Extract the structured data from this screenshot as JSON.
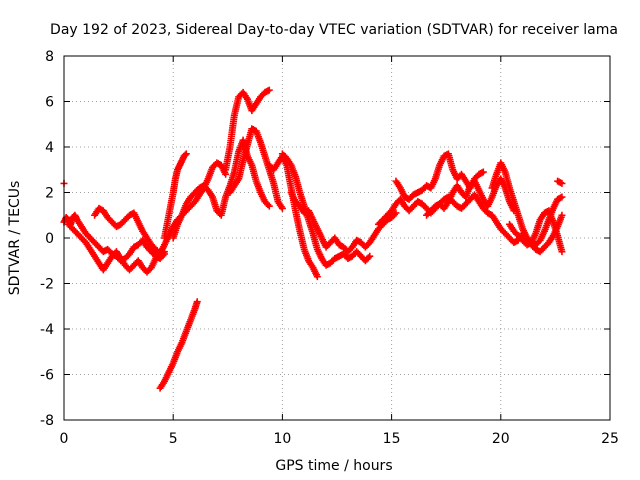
{
  "chart_data": {
    "type": "scatter",
    "title": "Day 192 of 2023, Sidereal Day-to-day VTEC variation (SDTVAR) for receiver lama",
    "xlabel": "GPS time / hours",
    "ylabel": "SDTVAR / TECUs",
    "xlim": [
      0,
      25
    ],
    "ylim": [
      -8,
      8
    ],
    "xticks": [
      0,
      5,
      10,
      15,
      20,
      25
    ],
    "yticks": [
      -8,
      -6,
      -4,
      -2,
      0,
      2,
      4,
      6,
      8
    ],
    "grid": true,
    "marker": "+",
    "color": "#ff0000",
    "series": [
      {
        "name": "track-1",
        "x": [
          0.0,
          0.1,
          0.2,
          0.3,
          0.4,
          0.5,
          0.6,
          0.8,
          1.0,
          1.2,
          1.4,
          1.6,
          1.8,
          2.0,
          2.2,
          2.4,
          2.6,
          2.8,
          3.0,
          3.2,
          3.4,
          3.6,
          3.8,
          4.0,
          4.2,
          4.4,
          4.6
        ],
        "y": [
          0.7,
          0.9,
          0.8,
          0.6,
          0.9,
          1.0,
          0.8,
          0.5,
          0.2,
          0.0,
          -0.2,
          -0.4,
          -0.6,
          -0.5,
          -0.7,
          -0.8,
          -1.0,
          -0.9,
          -0.7,
          -0.4,
          -0.3,
          -0.1,
          -0.4,
          -0.6,
          -0.8,
          -0.9,
          -0.7
        ]
      },
      {
        "name": "track-2",
        "x": [
          0.2,
          0.4,
          0.6,
          0.8,
          1.0,
          1.2,
          1.4,
          1.6,
          1.8,
          2.0,
          2.2,
          2.4,
          2.6,
          2.8,
          3.0,
          3.2,
          3.4,
          3.6,
          3.8,
          4.0,
          4.2,
          4.4
        ],
        "y": [
          0.6,
          0.4,
          0.2,
          0.0,
          -0.2,
          -0.5,
          -0.8,
          -1.1,
          -1.4,
          -1.1,
          -0.8,
          -0.6,
          -0.9,
          -1.2,
          -1.4,
          -1.2,
          -1.0,
          -1.3,
          -1.5,
          -1.3,
          -0.9,
          -0.6
        ]
      },
      {
        "name": "track-3",
        "x": [
          1.4,
          1.6,
          1.8,
          2.0,
          2.2,
          2.4,
          2.6,
          2.8,
          3.0,
          3.2,
          3.4,
          3.6,
          3.8,
          4.0,
          4.2,
          4.4,
          4.6
        ],
        "y": [
          1.0,
          1.3,
          1.2,
          0.9,
          0.7,
          0.5,
          0.6,
          0.8,
          1.0,
          1.1,
          0.7,
          0.3,
          0.0,
          -0.3,
          -0.5,
          -0.7,
          -0.6
        ]
      },
      {
        "name": "track-4",
        "x": [
          4.4,
          4.6,
          4.8,
          5.0,
          5.2,
          5.4,
          5.6,
          5.8,
          6.0,
          6.2,
          6.4,
          6.6,
          6.8,
          7.0,
          7.2,
          7.4
        ],
        "y": [
          -0.7,
          -0.3,
          0.1,
          0.5,
          0.8,
          1.0,
          1.2,
          1.4,
          1.6,
          1.9,
          2.2,
          2.6,
          3.1,
          3.3,
          3.2,
          2.8
        ]
      },
      {
        "name": "track-5",
        "x": [
          4.6,
          4.8,
          5.0,
          5.1,
          5.2,
          5.3,
          5.4,
          5.5,
          5.6
        ],
        "y": [
          0.0,
          1.0,
          2.0,
          2.6,
          3.0,
          3.2,
          3.4,
          3.6,
          3.7
        ]
      },
      {
        "name": "track-6",
        "x": [
          5.0,
          5.2,
          5.4,
          5.6,
          5.8,
          6.0,
          6.2,
          6.4,
          6.6,
          6.8,
          7.0,
          7.2,
          7.4,
          7.6,
          7.8,
          8.0,
          8.2,
          8.4,
          8.6,
          8.8,
          9.0,
          9.2,
          9.4
        ],
        "y": [
          0.0,
          0.6,
          1.0,
          1.5,
          1.8,
          2.0,
          2.2,
          2.3,
          2.1,
          1.8,
          1.2,
          1.0,
          1.8,
          2.3,
          2.9,
          3.8,
          4.3,
          3.6,
          3.2,
          2.5,
          2.0,
          1.6,
          1.4
        ]
      },
      {
        "name": "track-7",
        "x": [
          7.4,
          7.6,
          7.8,
          8.0,
          8.2,
          8.4,
          8.6,
          8.8,
          9.0,
          9.2,
          9.4
        ],
        "y": [
          3.0,
          4.0,
          5.4,
          6.2,
          6.4,
          6.1,
          5.6,
          5.9,
          6.2,
          6.4,
          6.5
        ]
      },
      {
        "name": "track-8",
        "x": [
          7.6,
          7.8,
          8.0,
          8.2,
          8.4,
          8.6,
          8.8,
          9.0,
          9.2,
          9.4,
          9.6,
          9.8,
          10.0
        ],
        "y": [
          2.0,
          2.3,
          2.6,
          3.4,
          4.1,
          4.8,
          4.7,
          4.2,
          3.6,
          3.0,
          2.4,
          1.6,
          1.3
        ]
      },
      {
        "name": "track-9",
        "x": [
          9.4,
          9.6,
          9.8,
          10.0,
          10.2,
          10.4,
          10.6,
          10.8,
          11.0,
          11.2,
          11.4,
          11.6
        ],
        "y": [
          3.2,
          3.0,
          3.3,
          3.6,
          3.2,
          2.2,
          1.2,
          0.3,
          -0.5,
          -1.0,
          -1.3,
          -1.7
        ]
      },
      {
        "name": "track-10",
        "x": [
          10.0,
          10.2,
          10.4,
          10.6,
          10.8,
          11.0,
          11.2,
          11.4,
          11.6,
          11.8,
          12.0,
          12.2,
          12.4,
          12.6,
          12.8,
          13.0,
          13.2,
          13.4,
          13.6,
          13.8,
          14.0
        ],
        "y": [
          3.7,
          3.5,
          3.2,
          2.7,
          2.0,
          1.4,
          0.8,
          0.2,
          -0.5,
          -0.9,
          -1.2,
          -1.1,
          -0.9,
          -0.8,
          -0.7,
          -0.9,
          -0.8,
          -0.6,
          -0.8,
          -1.0,
          -0.8
        ]
      },
      {
        "name": "track-11",
        "x": [
          10.4,
          10.6,
          10.8,
          11.0,
          11.2,
          11.4,
          11.6,
          11.8,
          12.0,
          12.2,
          12.4,
          12.6,
          12.8,
          13.0,
          13.2,
          13.4,
          13.6,
          13.8,
          14.0,
          14.2,
          14.4,
          14.6,
          14.8,
          15.0,
          15.2
        ],
        "y": [
          2.0,
          1.6,
          1.4,
          1.1,
          1.2,
          0.8,
          0.4,
          0.0,
          -0.4,
          -0.2,
          0.0,
          -0.3,
          -0.4,
          -0.6,
          -0.4,
          -0.1,
          -0.2,
          -0.4,
          -0.2,
          0.1,
          0.4,
          0.6,
          0.8,
          0.9,
          1.1
        ]
      },
      {
        "name": "track-12",
        "x": [
          14.4,
          14.6,
          14.8,
          15.0,
          15.2,
          15.4,
          15.6,
          15.8,
          16.0,
          16.2,
          16.4,
          16.6,
          16.8,
          17.0,
          17.2,
          17.4,
          17.6,
          17.8,
          18.0,
          18.2,
          18.4,
          18.6,
          18.8,
          19.0,
          19.2,
          19.4,
          19.6,
          19.8,
          20.0,
          20.2,
          20.4,
          20.6,
          20.8
        ],
        "y": [
          0.6,
          0.8,
          1.0,
          1.2,
          1.5,
          1.7,
          1.4,
          1.2,
          1.4,
          1.6,
          1.5,
          1.3,
          1.1,
          1.3,
          1.5,
          1.7,
          1.8,
          1.6,
          1.4,
          1.3,
          1.5,
          1.7,
          1.9,
          1.6,
          1.3,
          1.1,
          1.0,
          0.7,
          0.4,
          0.2,
          0.0,
          -0.2,
          -0.1
        ]
      },
      {
        "name": "track-13",
        "x": [
          15.2,
          15.4,
          15.6,
          15.8,
          16.0,
          16.2,
          16.4,
          16.6,
          16.8,
          17.0,
          17.2,
          17.4,
          17.6,
          17.8,
          18.0,
          18.2,
          18.4,
          18.6,
          18.8,
          19.0,
          19.2
        ],
        "y": [
          2.5,
          2.2,
          1.8,
          1.7,
          1.9,
          2.0,
          2.1,
          2.3,
          2.2,
          2.6,
          3.2,
          3.6,
          3.7,
          3.0,
          2.6,
          2.8,
          2.5,
          2.2,
          2.6,
          2.8,
          2.9
        ]
      },
      {
        "name": "track-14",
        "x": [
          16.6,
          16.8,
          17.0,
          17.2,
          17.4,
          17.6,
          17.8,
          18.0,
          18.2,
          18.4,
          18.6,
          18.8,
          19.0,
          19.2,
          19.4,
          19.6,
          19.8,
          20.0,
          20.2,
          20.4,
          20.6
        ],
        "y": [
          1.0,
          1.2,
          1.4,
          1.5,
          1.3,
          1.6,
          2.0,
          2.3,
          2.0,
          1.8,
          2.3,
          2.5,
          2.1,
          1.7,
          1.4,
          1.8,
          2.3,
          2.6,
          2.2,
          1.6,
          1.2
        ]
      },
      {
        "name": "track-15",
        "x": [
          19.6,
          19.8,
          20.0,
          20.2,
          20.4,
          20.6,
          20.8,
          21.0,
          21.2,
          21.4,
          21.6,
          21.8,
          22.0,
          22.2,
          22.4,
          22.6,
          22.8
        ],
        "y": [
          2.2,
          2.8,
          3.3,
          2.9,
          2.2,
          1.6,
          1.0,
          0.4,
          0.0,
          -0.3,
          -0.5,
          -0.6,
          -0.4,
          -0.2,
          0.1,
          0.5,
          1.0
        ]
      },
      {
        "name": "track-16",
        "x": [
          20.4,
          20.6,
          20.8,
          21.0,
          21.2,
          21.4,
          21.6,
          21.8,
          22.0,
          22.2,
          22.4,
          22.6,
          22.8
        ],
        "y": [
          0.6,
          0.3,
          0.1,
          -0.1,
          -0.3,
          -0.2,
          0.2,
          0.8,
          1.1,
          1.2,
          0.7,
          0.1,
          -0.6
        ]
      },
      {
        "name": "track-17",
        "x": [
          21.0,
          21.2,
          21.4,
          21.6,
          21.8,
          22.0,
          22.2,
          22.4,
          22.6,
          22.8
        ],
        "y": [
          0.2,
          0.0,
          -0.2,
          -0.3,
          -0.1,
          0.3,
          0.8,
          1.3,
          1.7,
          1.8
        ]
      },
      {
        "name": "track-18",
        "x": [
          22.6,
          22.8
        ],
        "y": [
          2.5,
          2.4
        ]
      },
      {
        "name": "track-19",
        "x": [
          4.4,
          4.6,
          4.8,
          5.0,
          5.2,
          5.4,
          5.6,
          5.8,
          6.0,
          6.1
        ],
        "y": [
          -6.6,
          -6.3,
          -5.9,
          -5.5,
          -5.0,
          -4.6,
          -4.1,
          -3.6,
          -3.1,
          -2.8
        ]
      },
      {
        "name": "track-20",
        "x": [
          0.0
        ],
        "y": [
          2.4
        ]
      }
    ]
  }
}
